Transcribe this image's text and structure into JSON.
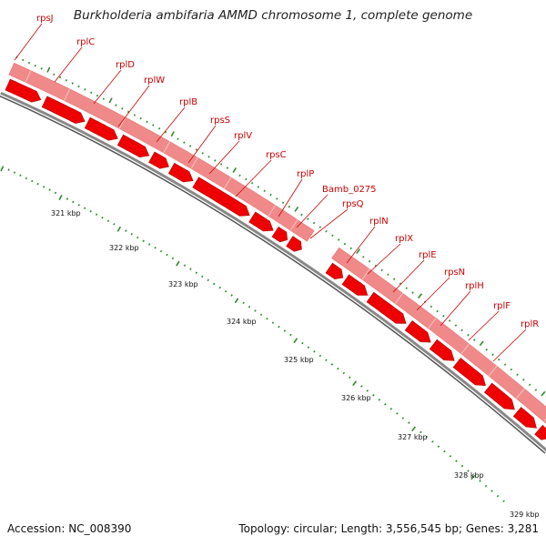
{
  "title": "Burkholderia ambifaria AMMD chromosome 1, complete genome",
  "footer": {
    "accession": "Accession: NC_008390",
    "topology": "Topology: circular; Length: 3,556,545 bp; Genes: 3,281"
  },
  "gene_labels": [
    "rpsJ",
    "rplC",
    "rplD",
    "rplW",
    "rplB",
    "rpsS",
    "rplV",
    "rpsC",
    "rplP",
    "Bamb_0275",
    "rpsQ",
    "rplN",
    "rplX",
    "rplE",
    "rpsN",
    "rplH",
    "rplF",
    "rplR"
  ],
  "kbp_labels": [
    "321 kbp",
    "322 kbp",
    "323 kbp",
    "324 kbp",
    "325 kbp",
    "326 kbp",
    "327 kbp",
    "328 kbp",
    "329 kbp"
  ],
  "colors": {
    "feature_band": "#f08a8a",
    "cds_arrow": "#ee0000",
    "backbone": "#888888",
    "tick": "#2e8b2e",
    "label": "#cc0000"
  }
}
